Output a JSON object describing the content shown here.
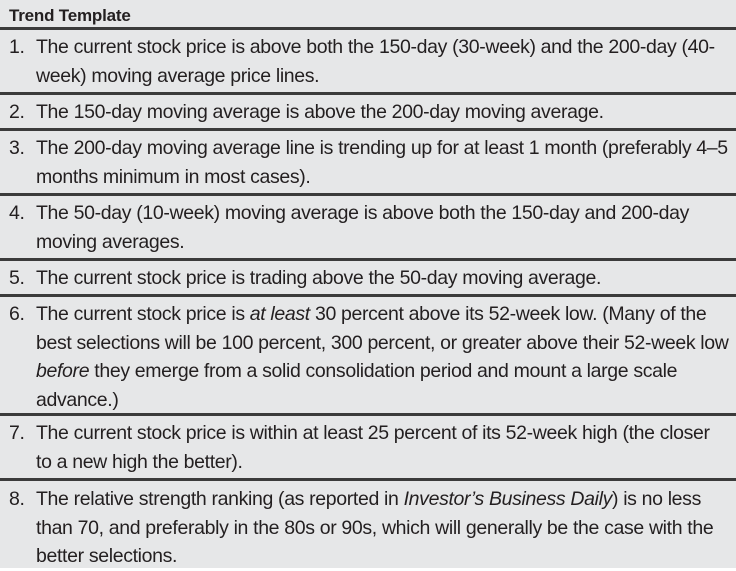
{
  "table": {
    "title": "Trend Template",
    "rows": [
      {
        "num": "1.",
        "segments": [
          {
            "t": "The current stock price is above both the 150-day (30-week) and the 200-day (40-week) moving average price lines."
          }
        ]
      },
      {
        "num": "2.",
        "segments": [
          {
            "t": "The 150-day moving average is above the 200-day moving average."
          }
        ]
      },
      {
        "num": "3.",
        "segments": [
          {
            "t": "The 200-day moving average line is trending up for at least 1 month (preferably 4–5 months minimum in most cases)."
          }
        ]
      },
      {
        "num": "4.",
        "segments": [
          {
            "t": "The 50-day (10-week) moving average is above both the 150-day and 200-day moving averages."
          }
        ]
      },
      {
        "num": "5.",
        "segments": [
          {
            "t": "The current stock price is trading above the 50-day moving average."
          }
        ]
      },
      {
        "num": "6.",
        "segments": [
          {
            "t": "The current stock price is "
          },
          {
            "t": "at least",
            "i": true
          },
          {
            "t": " 30 percent above its 52-week low. (Many of the best selections will be 100 percent, 300 percent, or greater above their 52-week low "
          },
          {
            "t": "before",
            "i": true
          },
          {
            "t": " they emerge from a solid consolidation period and mount a large scale advance.)"
          }
        ]
      },
      {
        "num": "7.",
        "segments": [
          {
            "t": "The current stock price is within at least 25 percent of its 52-week high (the closer to a new high the better)."
          }
        ]
      },
      {
        "num": "8.",
        "segments": [
          {
            "t": "The relative strength ranking (as reported in "
          },
          {
            "t": "Investor’s Business Daily",
            "i": true
          },
          {
            "t": ") is no less than 70, and preferably in the 80s or 90s, which will generally be the case with the better selections."
          }
        ]
      }
    ]
  }
}
